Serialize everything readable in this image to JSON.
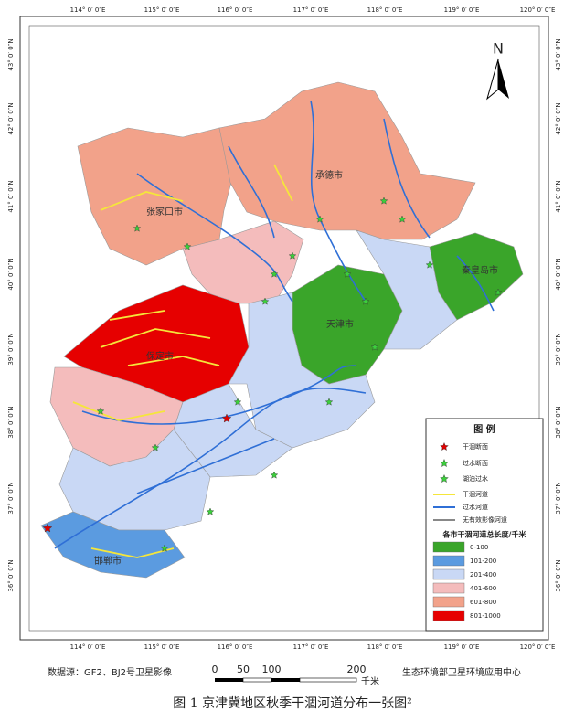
{
  "map": {
    "top_labels": [
      "114° 0′ 0″E",
      "115° 0′ 0″E",
      "116° 0′ 0″E",
      "117° 0′ 0″E",
      "118° 0′ 0″E",
      "119° 0′ 0″E",
      "120° 0′ 0″E"
    ],
    "bottom_labels": [
      "114° 0′ 0″E",
      "115° 0′ 0″E",
      "116° 0′ 0″E",
      "117° 0′ 0″E",
      "118° 0′ 0″E",
      "119° 0′ 0″E",
      "120° 0′ 0″E"
    ],
    "left_labels": [
      "43° 0′ 0″N",
      "42° 0′ 0″N",
      "41° 0′ 0″N",
      "40° 0′ 0″N",
      "39° 0′ 0″N",
      "38° 0′ 0″N",
      "37° 0′ 0″N",
      "36° 0′ 0″N"
    ],
    "right_labels": [
      "43° 0′ 0″N",
      "42° 0′ 0″N",
      "41° 0′ 0″N",
      "40° 0′ 0″N",
      "39° 0′ 0″N",
      "38° 0′ 0″N",
      "37° 0′ 0″N",
      "36° 0′ 0″N"
    ],
    "north": "N",
    "places": [
      "张家口市",
      "承德市",
      "秦皇岛市",
      "天津市",
      "保定市",
      "邯郸市"
    ]
  },
  "legend": {
    "title": "图 例",
    "items": [
      "干涸断面",
      "过水断面",
      "湖泊过水",
      "干涸河道",
      "过水河道",
      "无有效影像河道"
    ],
    "class_title": "各市干涸河道总长度/千米",
    "classes": [
      {
        "label": "0-100",
        "color": "#3aa52a"
      },
      {
        "label": "101-200",
        "color": "#5b9be0"
      },
      {
        "label": "201-400",
        "color": "#c9d8f5"
      },
      {
        "label": "401-600",
        "color": "#f4bcbc"
      },
      {
        "label": "601-800",
        "color": "#f2a28a"
      },
      {
        "label": "801-1000",
        "color": "#e60000"
      }
    ]
  },
  "scale": {
    "ticks": [
      "0",
      "50",
      "100",
      "200"
    ],
    "unit": "千米"
  },
  "footer": {
    "source": "数据源：GF2、BJ2号卫星影像",
    "agency": "生态环境部卫星环境应用中心"
  },
  "caption": "图 1 京津冀地区秋季干涸河道分布一张图²"
}
